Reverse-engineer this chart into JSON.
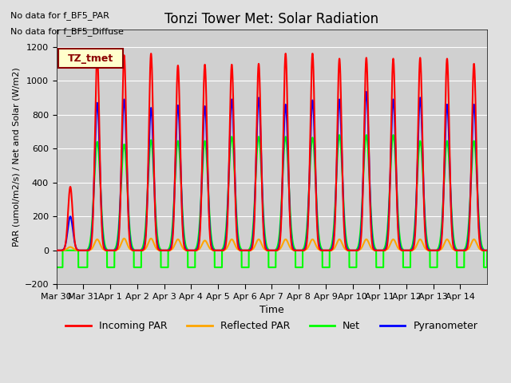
{
  "title": "Tonzi Tower Met: Solar Radiation",
  "xlabel": "Time",
  "ylabel": "PAR (umol/m2/s) / Net and Solar (W/m2)",
  "ylim": [
    -200,
    1300
  ],
  "yticks": [
    -200,
    0,
    200,
    400,
    600,
    800,
    1000,
    1200
  ],
  "note1": "No data for f_BF5_PAR",
  "note2": "No data for f_BF5_Diffuse",
  "legend_label": "TZ_tmet",
  "legend_entries": [
    "Incoming PAR",
    "Reflected PAR",
    "Net",
    "Pyranometer"
  ],
  "legend_colors": [
    "#ff0000",
    "#ffa500",
    "#00cc00",
    "#0000cc"
  ],
  "background_color": "#e0e0e0",
  "plot_bg_color": "#d0d0d0",
  "x_tick_labels": [
    "Mar 30",
    "Mar 31",
    "Apr 1",
    "Apr 2",
    "Apr 3",
    "Apr 4",
    "Apr 5",
    "Apr 6",
    "Apr 7",
    "Apr 8",
    "Apr 9",
    "Apr 10",
    "Apr 11",
    "Apr 12",
    "Apr 13",
    "Apr 14"
  ],
  "incoming_peaks": [
    375,
    1145,
    1150,
    1160,
    1090,
    1095,
    1095,
    1100,
    1160,
    1160,
    1130,
    1135,
    1130,
    1135,
    1130,
    1100
  ],
  "pyrano_peaks": [
    200,
    870,
    890,
    840,
    855,
    850,
    890,
    900,
    860,
    885,
    890,
    935,
    890,
    900,
    860,
    860
  ],
  "net_peaks": [
    0,
    640,
    625,
    650,
    645,
    645,
    670,
    670,
    670,
    665,
    680,
    680,
    680,
    645,
    645,
    645
  ],
  "reflected_peaks": [
    20,
    65,
    70,
    70,
    65,
    58,
    65,
    65,
    65,
    65,
    65,
    65,
    65,
    65,
    65,
    65
  ],
  "line_width": 1.5,
  "n_days": 16
}
